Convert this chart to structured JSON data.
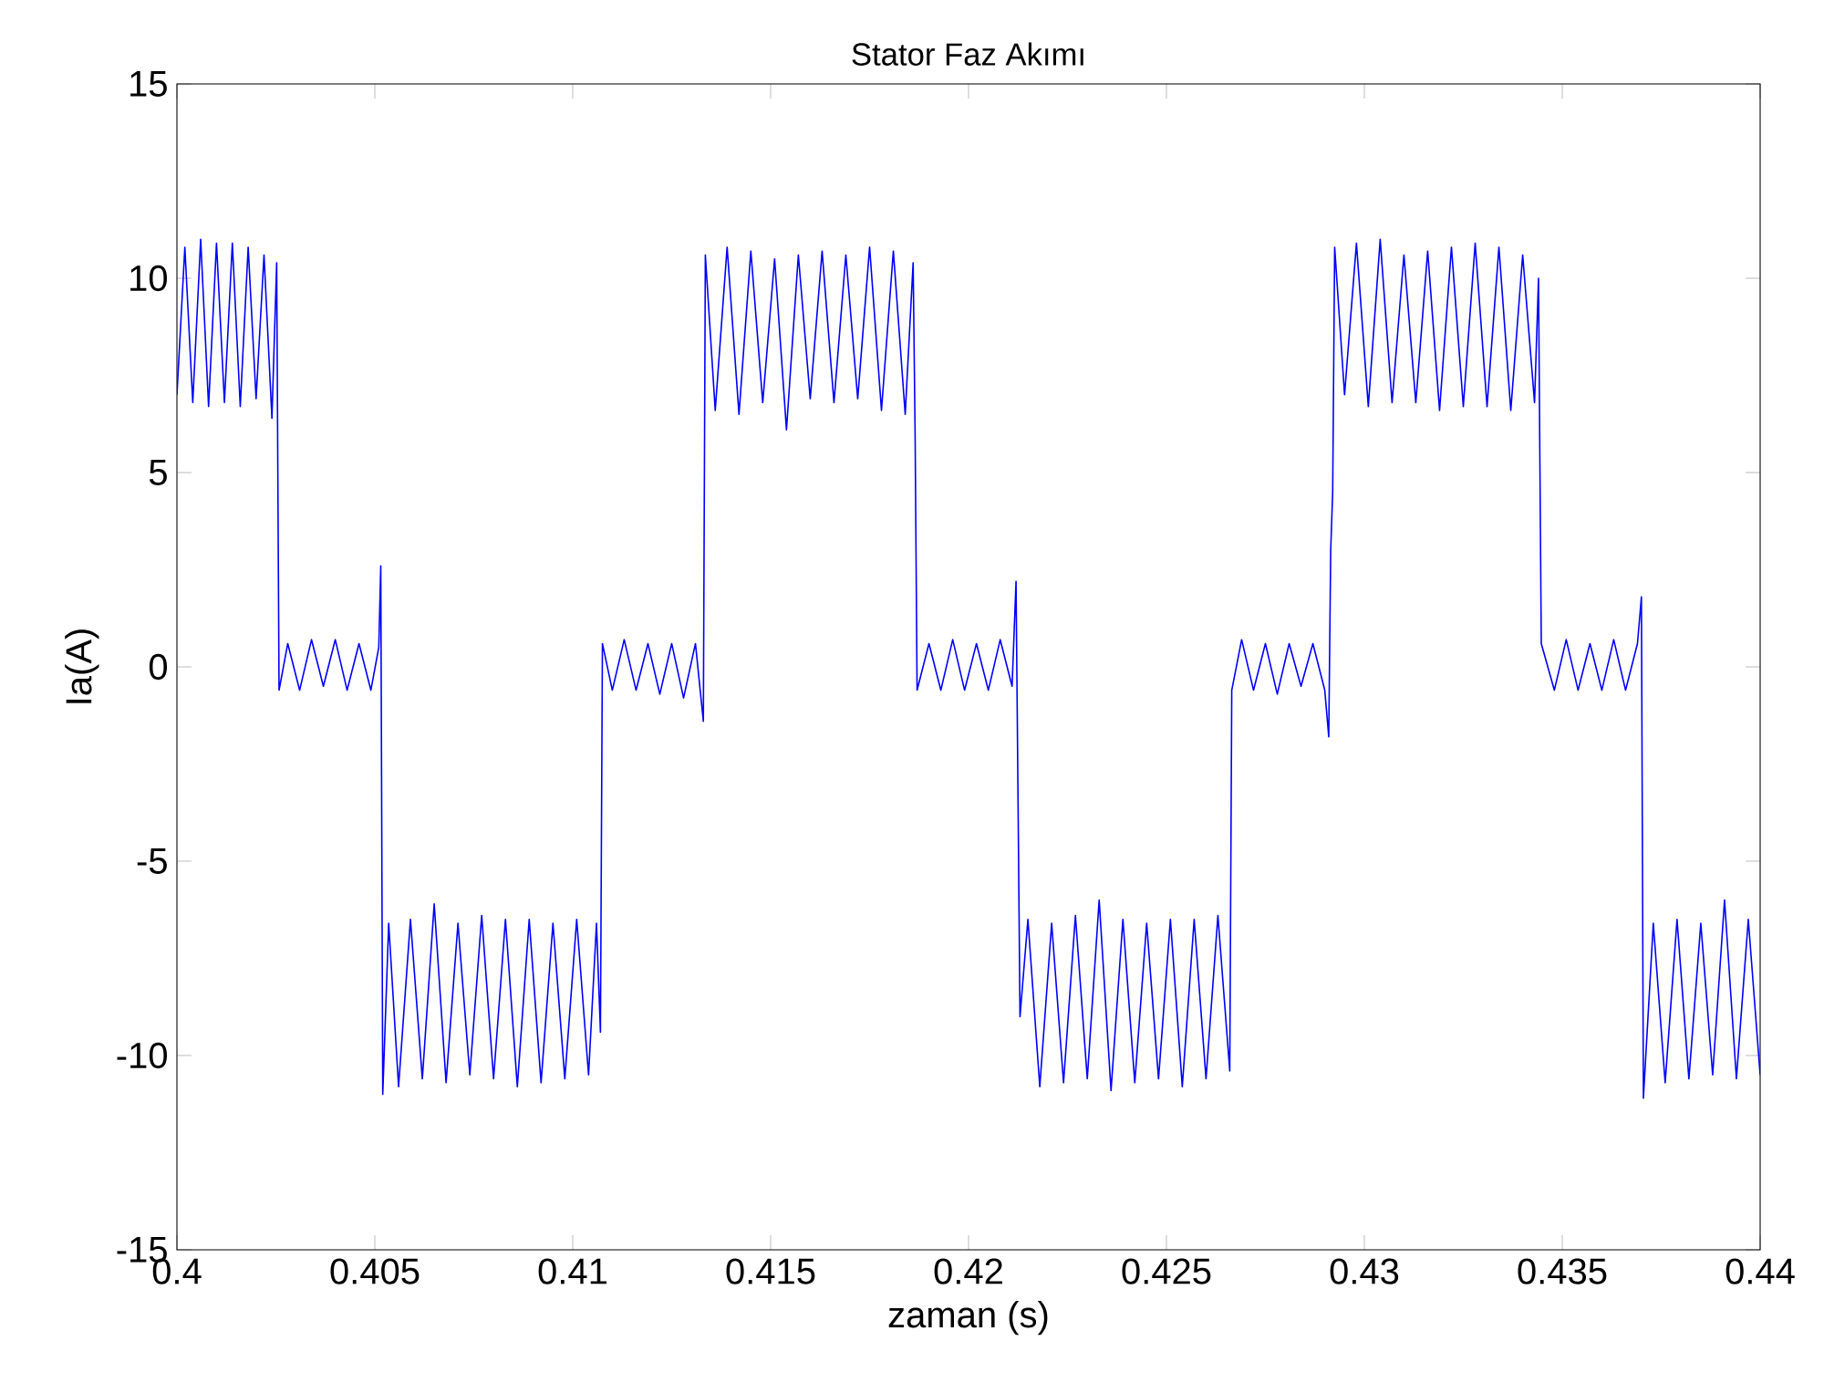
{
  "chart_data": {
    "type": "line",
    "title": "Stator Faz Akımı",
    "xlabel": "zaman (s)",
    "ylabel": "Ia(A)",
    "xlim": [
      0.4,
      0.44
    ],
    "ylim": [
      -15,
      15
    ],
    "xticks": [
      0.4,
      0.405,
      0.41,
      0.415,
      0.42,
      0.425,
      0.43,
      0.435,
      0.44
    ],
    "yticks": [
      -15,
      -10,
      -5,
      0,
      5,
      10,
      15
    ],
    "x": [
      0.4,
      0.4002,
      0.4004,
      0.4006,
      0.4008,
      0.401,
      0.4012,
      0.4014,
      0.4016,
      0.4018,
      0.402,
      0.4022,
      0.4024,
      0.40252,
      0.40258,
      0.4028,
      0.4031,
      0.4034,
      0.4037,
      0.404,
      0.4043,
      0.4046,
      0.4049,
      0.4051,
      0.40515,
      0.4052,
      0.40535,
      0.4056,
      0.4059,
      0.4062,
      0.4065,
      0.4068,
      0.4071,
      0.4074,
      0.4077,
      0.408,
      0.4083,
      0.4086,
      0.4089,
      0.4092,
      0.4095,
      0.4098,
      0.4101,
      0.4104,
      0.4106,
      0.4107,
      0.41075,
      0.411,
      0.4113,
      0.4116,
      0.4119,
      0.4122,
      0.4125,
      0.4128,
      0.4131,
      0.4133,
      0.41335,
      0.4136,
      0.4139,
      0.4142,
      0.4145,
      0.4148,
      0.4151,
      0.4154,
      0.4157,
      0.416,
      0.4163,
      0.4166,
      0.4169,
      0.4172,
      0.4175,
      0.4178,
      0.4181,
      0.4184,
      0.4186,
      0.41865,
      0.4187,
      0.419,
      0.4193,
      0.4196,
      0.4199,
      0.4202,
      0.4205,
      0.4208,
      0.4211,
      0.4212,
      0.4213,
      0.4215,
      0.4218,
      0.4221,
      0.4224,
      0.4227,
      0.423,
      0.4233,
      0.4236,
      0.4239,
      0.4242,
      0.4245,
      0.4248,
      0.4251,
      0.4254,
      0.4257,
      0.426,
      0.4263,
      0.4266,
      0.42665,
      0.4269,
      0.4272,
      0.4275,
      0.4278,
      0.4281,
      0.4284,
      0.4287,
      0.429,
      0.4291,
      0.42915,
      0.4292,
      0.42925,
      0.4295,
      0.4298,
      0.4301,
      0.4304,
      0.4307,
      0.431,
      0.4313,
      0.4316,
      0.4319,
      0.4322,
      0.4325,
      0.4328,
      0.4331,
      0.4334,
      0.4337,
      0.434,
      0.4343,
      0.4344,
      0.43447,
      0.4348,
      0.4351,
      0.4354,
      0.4357,
      0.436,
      0.4363,
      0.4366,
      0.4369,
      0.437,
      0.43705,
      0.4373,
      0.4376,
      0.4379,
      0.4382,
      0.4385,
      0.4388,
      0.4391,
      0.4394,
      0.4397,
      0.44
    ],
    "series": [
      {
        "color": "#0000ff",
        "values": [
          7.0,
          10.8,
          6.8,
          11.0,
          6.7,
          10.9,
          6.8,
          10.9,
          6.7,
          10.8,
          6.9,
          10.6,
          6.4,
          10.4,
          -0.6,
          0.6,
          -0.6,
          0.7,
          -0.5,
          0.7,
          -0.6,
          0.6,
          -0.6,
          0.5,
          2.6,
          -11.0,
          -6.6,
          -10.8,
          -6.5,
          -10.6,
          -6.1,
          -10.7,
          -6.6,
          -10.5,
          -6.4,
          -10.6,
          -6.5,
          -10.8,
          -6.5,
          -10.7,
          -6.6,
          -10.6,
          -6.5,
          -10.5,
          -6.6,
          -9.4,
          0.6,
          -0.6,
          0.7,
          -0.6,
          0.6,
          -0.7,
          0.6,
          -0.8,
          0.6,
          -1.4,
          10.6,
          6.6,
          10.8,
          6.5,
          10.7,
          6.8,
          10.5,
          6.1,
          10.6,
          6.9,
          10.7,
          6.8,
          10.6,
          6.9,
          10.8,
          6.6,
          10.7,
          6.5,
          10.4,
          6.0,
          -0.6,
          0.6,
          -0.6,
          0.7,
          -0.6,
          0.6,
          -0.6,
          0.7,
          -0.5,
          2.2,
          -9.0,
          -6.5,
          -10.8,
          -6.6,
          -10.7,
          -6.4,
          -10.6,
          -6.0,
          -10.9,
          -6.5,
          -10.7,
          -6.6,
          -10.6,
          -6.5,
          -10.8,
          -6.5,
          -10.6,
          -6.4,
          -10.4,
          -0.6,
          0.7,
          -0.6,
          0.6,
          -0.7,
          0.6,
          -0.5,
          0.6,
          -0.6,
          -1.8,
          3.0,
          4.5,
          10.8,
          7.0,
          10.9,
          6.7,
          11.0,
          6.8,
          10.6,
          6.8,
          10.7,
          6.6,
          10.8,
          6.7,
          10.9,
          6.7,
          10.8,
          6.6,
          10.6,
          6.8,
          10.0,
          0.6,
          -0.6,
          0.7,
          -0.6,
          0.6,
          -0.6,
          0.7,
          -0.6,
          0.6,
          1.8,
          -11.1,
          -6.6,
          -10.7,
          -6.5,
          -10.6,
          -6.6,
          -10.5,
          -6.0,
          -10.6,
          -6.5,
          -10.5
        ]
      }
    ]
  }
}
